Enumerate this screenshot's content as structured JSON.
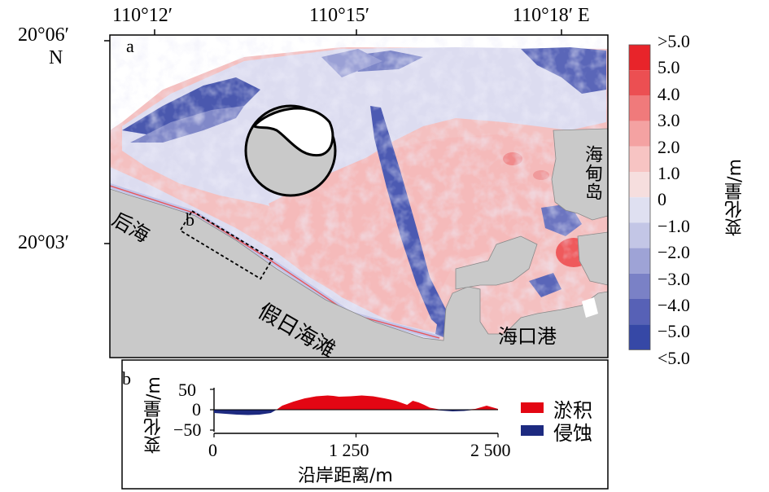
{
  "panel_a": {
    "label": "a",
    "top_ticks": [
      "110°12′",
      "110°15′",
      "110°18′ E"
    ],
    "left_ticks": [
      "20°06′",
      "N",
      "20°03′"
    ],
    "place_labels": {
      "houhai": "后海",
      "box_b": "b",
      "jiari": "假日海滩",
      "haikou": "海口港",
      "haidian": "海甸岛"
    }
  },
  "colorbar": {
    "labels": [
      ">5.0",
      "5.0",
      "4.0",
      "3.0",
      "2.0",
      "1.0",
      "0",
      "−1.0",
      "−2.0",
      "−3.0",
      "−4.0",
      "−5.0",
      "<5.0"
    ],
    "colors": [
      "#e8242a",
      "#ec4f52",
      "#f07a7b",
      "#f4a2a2",
      "#f7c4c3",
      "#f6dede",
      "#dfe0f1",
      "#c3c6e6",
      "#9ea3d6",
      "#7a81c6",
      "#5761b6",
      "#3648a6"
    ],
    "title": "变化量/m"
  },
  "panel_b": {
    "label": "b",
    "ylabel": "变化量/m",
    "xlabel": "沿岸距离/m",
    "yticks": [
      "50",
      "0",
      "−50"
    ],
    "xticks": [
      "0",
      "1 250",
      "2 500"
    ],
    "legend": [
      {
        "name": "淤积",
        "color": "#e30613"
      },
      {
        "name": "侵蚀",
        "color": "#1d2a80"
      }
    ]
  },
  "chart_data": {
    "type": "area",
    "xlabel": "沿岸距离/m",
    "ylabel": "变化量/m",
    "xlim": [
      0,
      2500
    ],
    "ylim": [
      -60,
      60
    ],
    "x": [
      0,
      100,
      200,
      300,
      400,
      500,
      550,
      600,
      700,
      800,
      900,
      1000,
      1050,
      1100,
      1200,
      1300,
      1400,
      1500,
      1600,
      1700,
      1750,
      1800,
      1850,
      1900,
      2000,
      2100,
      2200,
      2300,
      2400,
      2450,
      2500
    ],
    "y": [
      -8,
      -10,
      -12,
      -13,
      -12,
      -8,
      0,
      10,
      20,
      28,
      33,
      35,
      34,
      32,
      33,
      35,
      33,
      28,
      22,
      12,
      22,
      18,
      12,
      5,
      -2,
      -4,
      -3,
      2,
      10,
      6,
      2
    ],
    "series": [
      {
        "name": "淤积",
        "color": "#e30613"
      },
      {
        "name": "侵蚀",
        "color": "#1d2a80"
      }
    ]
  }
}
